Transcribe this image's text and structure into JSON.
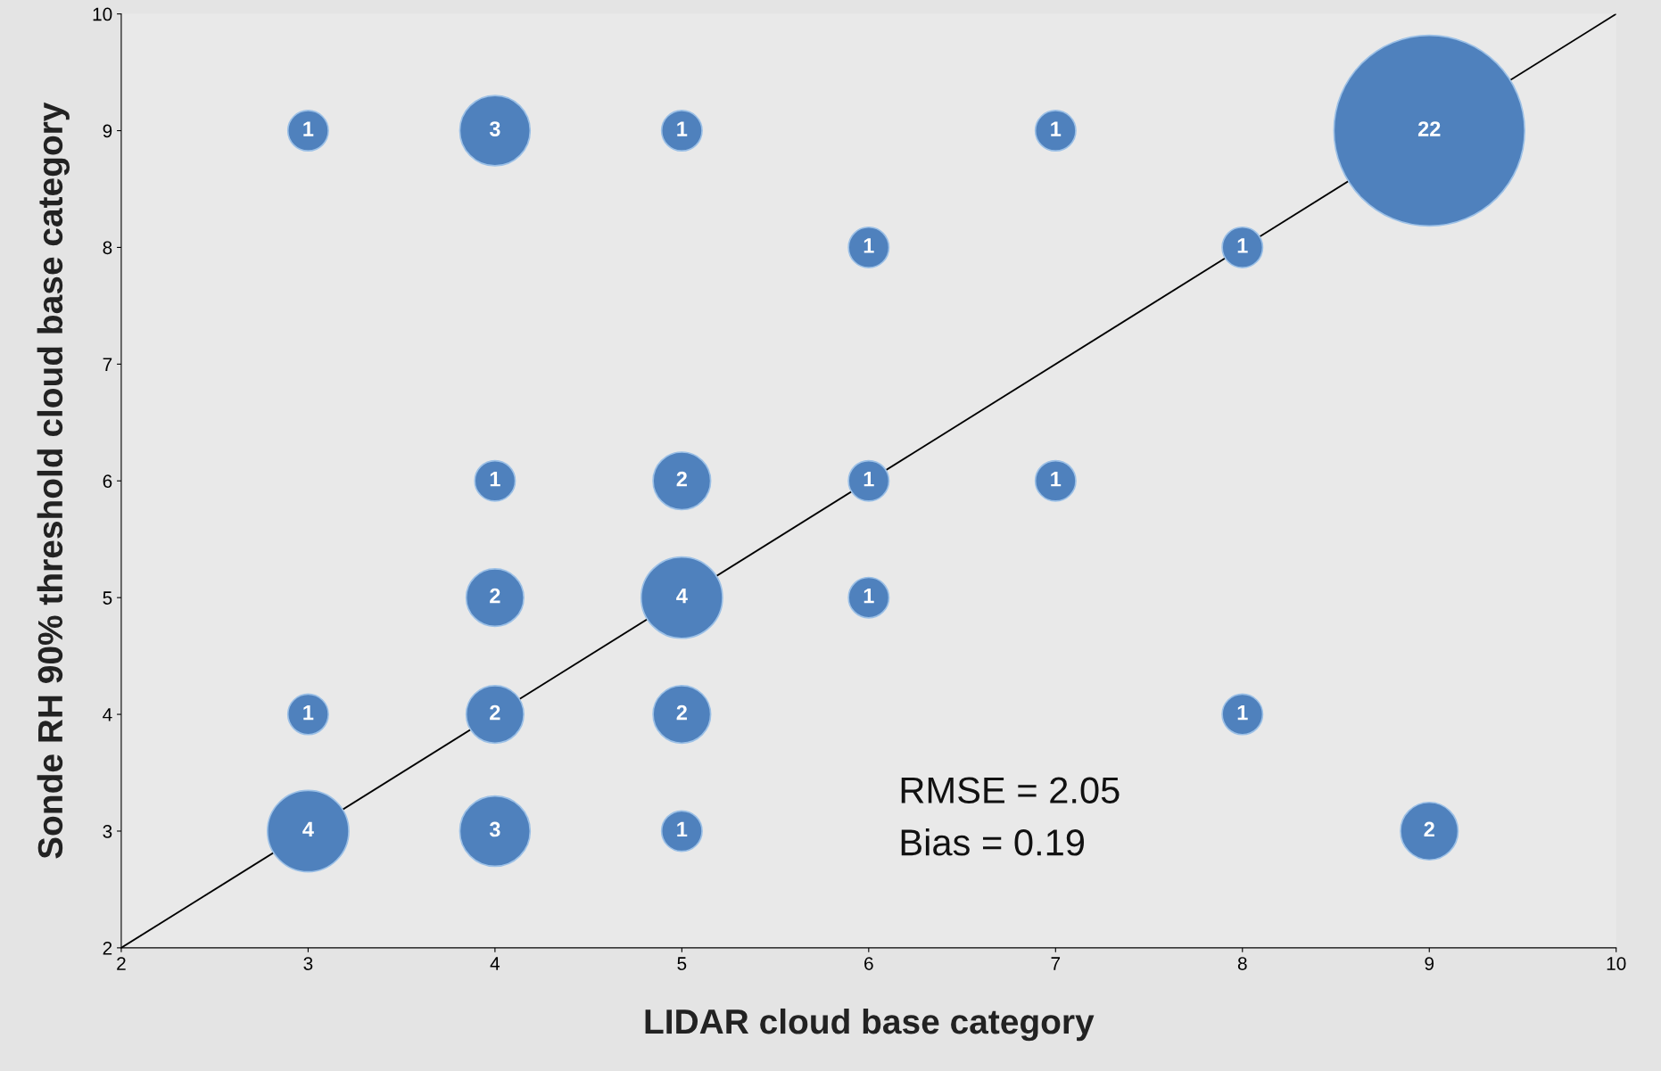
{
  "chart_data": {
    "type": "bubble",
    "xlabel": "LIDAR cloud base category",
    "ylabel": "Sonde RH 90% threshold cloud base category",
    "xlim": [
      2,
      10
    ],
    "ylim": [
      2,
      10
    ],
    "xticks": [
      2,
      3,
      4,
      5,
      6,
      7,
      8,
      9,
      10
    ],
    "yticks": [
      2,
      3,
      4,
      5,
      6,
      7,
      8,
      9,
      10
    ],
    "grid": false,
    "legend": false,
    "series": [
      {
        "color": "#4f81bd",
        "x": [
          3,
          4,
          5,
          7,
          9,
          6,
          8,
          4,
          5,
          6,
          7,
          4,
          5,
          6,
          3,
          4,
          5,
          8,
          3,
          4,
          5,
          9
        ],
        "values": [
          9,
          9,
          9,
          9,
          9,
          8,
          8,
          6,
          6,
          6,
          6,
          5,
          5,
          5,
          4,
          4,
          4,
          4,
          3,
          3,
          3,
          3
        ],
        "sizes": [
          0.045,
          0.136,
          0.045,
          0.045,
          1,
          0.045,
          0.045,
          0.045,
          0.091,
          0.045,
          0.045,
          0.091,
          0.182,
          0.045,
          0.045,
          0.091,
          0.091,
          0.045,
          0.182,
          0.136,
          0.045,
          0.091
        ]
      },
      {
        "type": "line",
        "color": "#000000",
        "x": [
          2,
          10
        ],
        "values": [
          2,
          10
        ]
      }
    ],
    "annotations": [
      {
        "text": "1",
        "x": 3,
        "y": 9
      },
      {
        "text": "3",
        "x": 4,
        "y": 9
      },
      {
        "text": "1",
        "x": 5,
        "y": 9
      },
      {
        "text": "1",
        "x": 7,
        "y": 9
      },
      {
        "text": "22",
        "x": 9,
        "y": 9
      },
      {
        "text": "1",
        "x": 6,
        "y": 8
      },
      {
        "text": "1",
        "x": 8,
        "y": 8
      },
      {
        "text": "1",
        "x": 4,
        "y": 6
      },
      {
        "text": "2",
        "x": 5,
        "y": 6
      },
      {
        "text": "1",
        "x": 6,
        "y": 6
      },
      {
        "text": "1",
        "x": 7,
        "y": 6
      },
      {
        "text": "2",
        "x": 4,
        "y": 5
      },
      {
        "text": "4",
        "x": 5,
        "y": 5
      },
      {
        "text": "1",
        "x": 6,
        "y": 5
      },
      {
        "text": "1",
        "x": 3,
        "y": 4
      },
      {
        "text": "2",
        "x": 4,
        "y": 4
      },
      {
        "text": "2",
        "x": 5,
        "y": 4
      },
      {
        "text": "1",
        "x": 8,
        "y": 4
      },
      {
        "text": "4",
        "x": 3,
        "y": 3
      },
      {
        "text": "3",
        "x": 4,
        "y": 3
      },
      {
        "text": "1",
        "x": 5,
        "y": 3
      },
      {
        "text": "2",
        "x": 9,
        "y": 3
      },
      "RMSE = 2.05",
      "Bias = 0.19"
    ]
  }
}
